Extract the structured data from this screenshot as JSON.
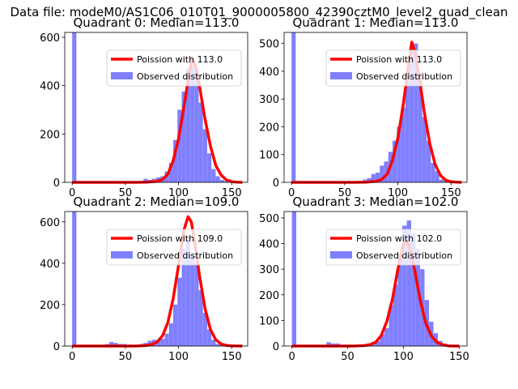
{
  "suptitle": "Data file: modeM0/AS1C06_010T01_9000005800_42390cztM0_level2_quad_clean",
  "colors": {
    "observed": "#0000ff",
    "poisson": "#ff0000"
  },
  "chart_data": [
    {
      "type": "bar",
      "title": "Quadrant 0: Median=113.0",
      "xlim": [
        -7,
        165
      ],
      "ylim": [
        0,
        620
      ],
      "xticks": [
        0,
        50,
        100,
        150
      ],
      "yticks": [
        0,
        200,
        400,
        600
      ],
      "bin_width": 3.9,
      "legend": {
        "placement": "upper-right",
        "entries": [
          "Poission with 113.0",
          "Observed distribution"
        ]
      },
      "poisson_lambda": 113.0,
      "bins": {
        "x": [
          0,
          35,
          39,
          43,
          47,
          51,
          55,
          59,
          63,
          67,
          71,
          75,
          79,
          83,
          87,
          91,
          95,
          99,
          103,
          107,
          111,
          115,
          119,
          123,
          127,
          131,
          135,
          139,
          143
        ],
        "y": [
          620,
          0,
          0,
          0,
          0,
          0,
          0,
          0,
          0,
          15,
          10,
          15,
          20,
          25,
          45,
          80,
          175,
          300,
          375,
          470,
          480,
          470,
          330,
          220,
          120,
          55,
          25,
          10,
          5
        ]
      },
      "poisson_curve": {
        "x": [
          0,
          60,
          70,
          80,
          85,
          90,
          95,
          100,
          105,
          110,
          113,
          116,
          120,
          125,
          130,
          135,
          140,
          145,
          150,
          155,
          160
        ],
        "y": [
          0,
          0,
          1,
          4,
          12,
          35,
          90,
          180,
          310,
          450,
          510,
          480,
          390,
          260,
          150,
          70,
          30,
          10,
          3,
          1,
          0
        ]
      }
    },
    {
      "type": "bar",
      "title": "Quadrant 1: Median=113.0",
      "xlim": [
        -7,
        165
      ],
      "ylim": [
        0,
        540
      ],
      "xticks": [
        0,
        50,
        100,
        150
      ],
      "yticks": [
        0,
        100,
        200,
        300,
        400,
        500
      ],
      "bin_width": 3.9,
      "legend": {
        "placement": "upper-right",
        "entries": [
          "Poission with 113.0",
          "Observed distribution"
        ]
      },
      "poisson_lambda": 113.0,
      "bins": {
        "x": [
          0,
          67,
          71,
          75,
          79,
          83,
          87,
          91,
          95,
          99,
          103,
          107,
          111,
          115,
          119,
          123,
          127,
          131,
          135,
          139,
          143,
          147
        ],
        "y": [
          540,
          10,
          15,
          30,
          35,
          60,
          75,
          110,
          150,
          200,
          270,
          400,
          490,
          500,
          380,
          235,
          150,
          70,
          40,
          10,
          5,
          0
        ]
      },
      "poisson_curve": {
        "x": [
          0,
          60,
          70,
          80,
          85,
          90,
          95,
          100,
          105,
          110,
          113,
          116,
          120,
          125,
          130,
          135,
          140,
          145,
          150,
          155,
          160
        ],
        "y": [
          0,
          0,
          1,
          4,
          11,
          30,
          80,
          160,
          280,
          420,
          505,
          470,
          380,
          250,
          140,
          65,
          25,
          8,
          2,
          1,
          0
        ]
      }
    },
    {
      "type": "bar",
      "title": "Quadrant 2: Median=109.0",
      "xlim": [
        -7,
        165
      ],
      "ylim": [
        0,
        650
      ],
      "xticks": [
        0,
        50,
        100,
        150
      ],
      "yticks": [
        0,
        200,
        400,
        600
      ],
      "bin_width": 3.9,
      "legend": {
        "placement": "upper-right",
        "entries": [
          "Poission with 109.0",
          "Observed distribution"
        ]
      },
      "poisson_lambda": 109.0,
      "bins": {
        "x": [
          0,
          31,
          35,
          39,
          43,
          47,
          51,
          55,
          59,
          63,
          67,
          71,
          75,
          79,
          83,
          87,
          91,
          95,
          99,
          103,
          107,
          111,
          115,
          119,
          123,
          127,
          131,
          135,
          139
        ],
        "y": [
          650,
          10,
          20,
          15,
          10,
          10,
          5,
          5,
          5,
          10,
          15,
          25,
          30,
          30,
          35,
          60,
          110,
          200,
          330,
          470,
          520,
          440,
          400,
          270,
          160,
          80,
          30,
          10,
          5
        ]
      },
      "poisson_curve": {
        "x": [
          0,
          60,
          70,
          75,
          80,
          85,
          90,
          95,
          100,
          105,
          109,
          112,
          115,
          120,
          125,
          130,
          135,
          140,
          145,
          150,
          160
        ],
        "y": [
          0,
          0,
          3,
          8,
          20,
          50,
          115,
          230,
          390,
          560,
          625,
          600,
          510,
          330,
          180,
          80,
          30,
          10,
          3,
          1,
          0
        ]
      }
    },
    {
      "type": "bar",
      "title": "Quadrant 3: Median=102.0",
      "xlim": [
        -7,
        157
      ],
      "ylim": [
        0,
        525
      ],
      "xticks": [
        0,
        50,
        100,
        150
      ],
      "yticks": [
        0,
        100,
        200,
        300,
        400,
        500
      ],
      "bin_width": 3.9,
      "legend": {
        "placement": "upper-right",
        "entries": [
          "Poission with 102.0",
          "Observed distribution"
        ]
      },
      "poisson_lambda": 102.0,
      "bins": {
        "x": [
          0,
          31,
          35,
          39,
          43,
          47,
          51,
          55,
          59,
          63,
          67,
          71,
          75,
          79,
          83,
          87,
          91,
          95,
          99,
          103,
          107,
          111,
          115,
          119,
          123,
          127,
          131,
          135,
          139
        ],
        "y": [
          525,
          15,
          10,
          10,
          5,
          5,
          5,
          5,
          5,
          5,
          10,
          15,
          20,
          45,
          70,
          160,
          240,
          360,
          470,
          490,
          440,
          380,
          300,
          180,
          95,
          50,
          20,
          10,
          5
        ]
      },
      "poisson_curve": {
        "x": [
          0,
          55,
          65,
          70,
          75,
          80,
          85,
          90,
          95,
          100,
          102,
          105,
          110,
          115,
          120,
          125,
          130,
          135,
          140,
          145,
          150
        ],
        "y": [
          0,
          0,
          2,
          5,
          15,
          40,
          95,
          180,
          300,
          400,
          410,
          395,
          300,
          180,
          90,
          40,
          15,
          5,
          1,
          0,
          0
        ]
      }
    }
  ]
}
